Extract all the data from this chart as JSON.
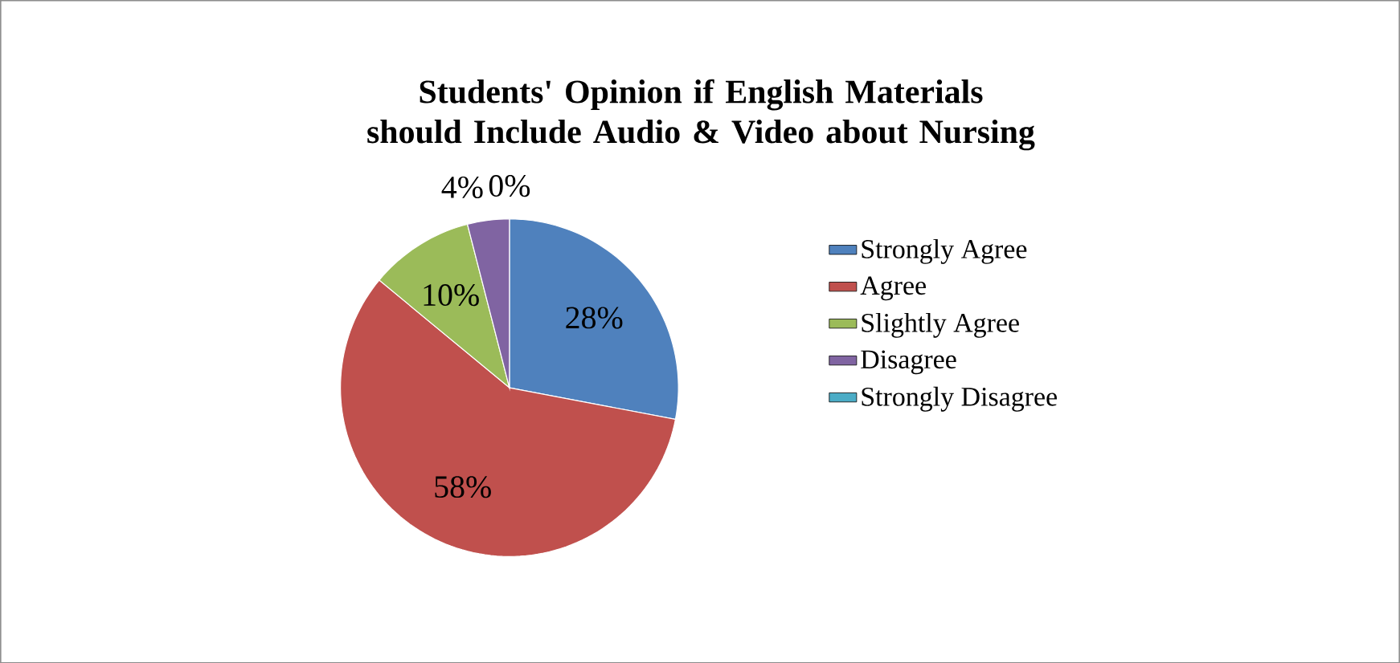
{
  "chart_data": {
    "type": "pie",
    "title": "Students' Opinion if English Materials should Include Audio & Video about Nursing",
    "categories": [
      "Strongly Agree",
      "Agree",
      "Slightly Agree",
      "Disagree",
      "Strongly Disagree"
    ],
    "values": [
      28,
      58,
      10,
      4,
      0
    ],
    "value_labels": [
      "28%",
      "58%",
      "10%",
      "4%",
      "0%"
    ],
    "colors": [
      "#4f81bd",
      "#c0504d",
      "#9bbb59",
      "#8064a2",
      "#4bacc6"
    ],
    "legend": "right"
  }
}
